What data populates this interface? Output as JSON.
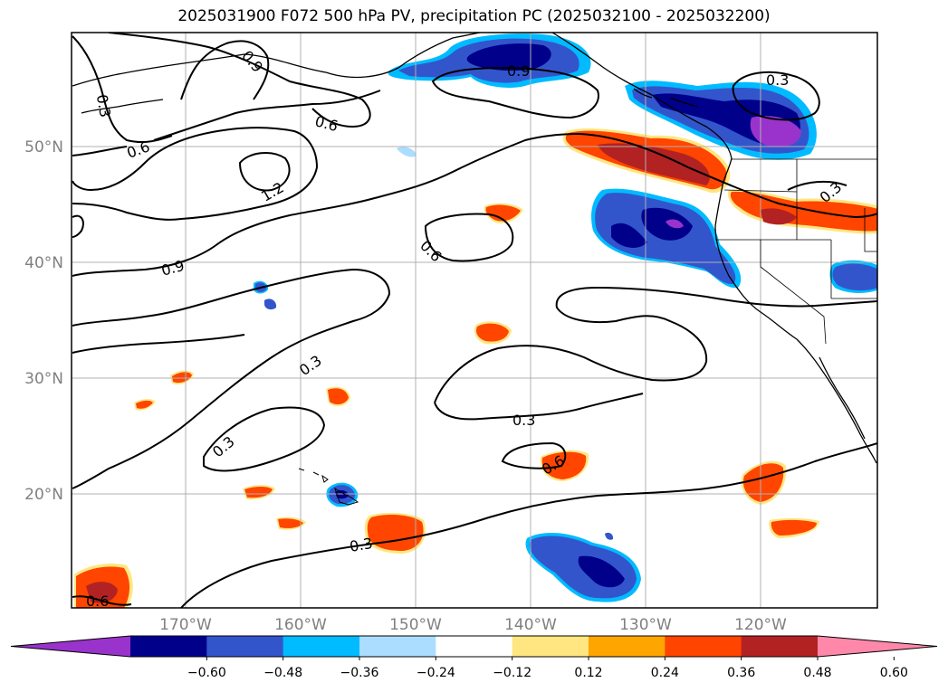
{
  "title": "2025031900 F072 500 hPa PV, precipitation PC (2025032100 - 2025032200)",
  "lat_labels": [
    "50°N",
    "40°N",
    "30°N",
    "20°N"
  ],
  "lon_labels": [
    "170°W",
    "160°W",
    "150°W",
    "140°W",
    "130°W",
    "120°W"
  ],
  "contour_labels": [
    "0.9",
    "0.3",
    "0.6",
    "0.6",
    "1.2",
    "0.9",
    "0.9",
    "0.6",
    "0.3",
    "0.3",
    "0.3",
    "0.3",
    "0.3",
    "0.6",
    "0.3",
    "0.6"
  ],
  "colorbar": {
    "ticks": [
      "−0.60",
      "−0.48",
      "−0.36",
      "−0.24",
      "−0.12",
      "0.12",
      "0.24",
      "0.36",
      "0.48",
      "0.60"
    ],
    "colors": [
      "#9933cc",
      "#00008b",
      "#3355cc",
      "#00bbff",
      "#aaddff",
      "#ffffff",
      "#ffe680",
      "#ffa500",
      "#ff4500",
      "#b22222",
      "#ff88aa"
    ]
  }
}
